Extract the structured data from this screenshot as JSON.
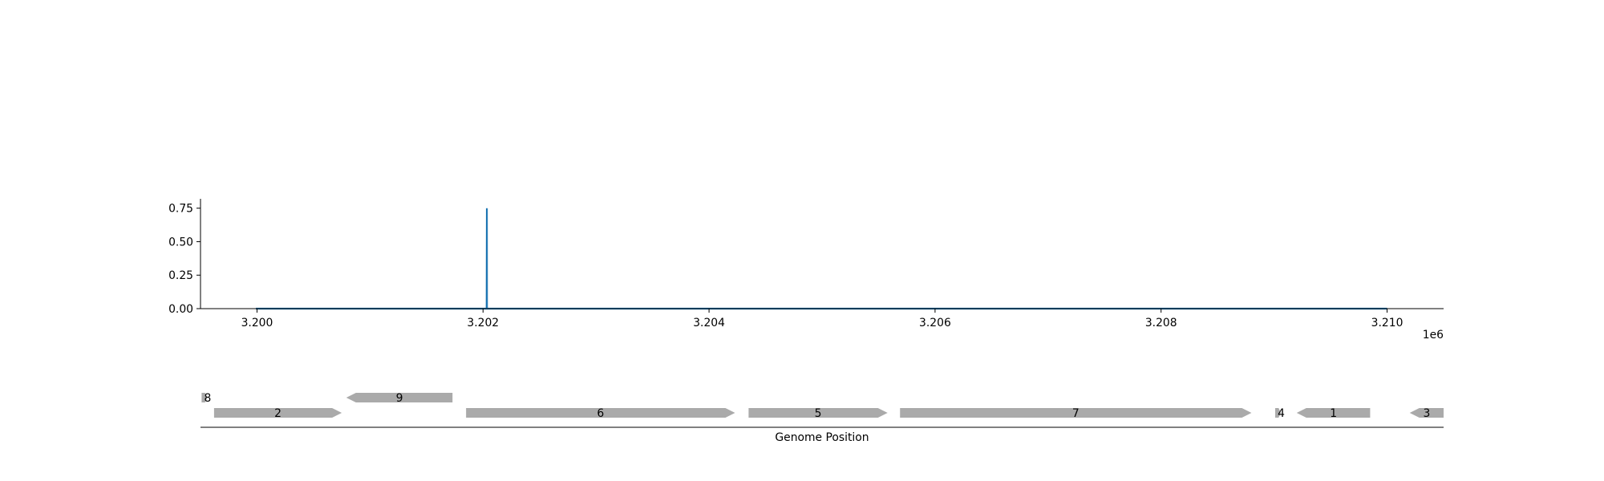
{
  "chart_data": [
    {
      "type": "line",
      "x": [
        3199990,
        3202030,
        3202031,
        3202032,
        3202034,
        3202035,
        3202036,
        3202040,
        3202045,
        3210000
      ],
      "y": [
        0.0,
        0.0,
        0.0,
        0.0,
        0.75,
        0.0,
        0.0,
        0.0,
        0.0,
        0.0
      ],
      "color": "#1f77b4",
      "xlim": [
        3199500,
        3210500
      ],
      "ylim": [
        0.0,
        0.82
      ],
      "xticks": [
        3200000,
        3202000,
        3204000,
        3206000,
        3208000,
        3210000
      ],
      "xtick_labels": [
        "3.200",
        "3.202",
        "3.204",
        "3.206",
        "3.208",
        "3.210"
      ],
      "yticks": [
        0.0,
        0.25,
        0.5,
        0.75
      ],
      "ytick_labels": [
        "0.00",
        "0.25",
        "0.50",
        "0.75"
      ],
      "offset_text": "1e6",
      "grid": false
    },
    {
      "type": "gene-track",
      "xlabel": "Genome Position",
      "color": "#aaaaaa",
      "xlim": [
        3199500,
        3210500
      ],
      "genes": [
        {
          "label": "8",
          "start": 3199510,
          "end": 3199560,
          "strand": 1,
          "row": 1
        },
        {
          "label": "9",
          "start": 3200790,
          "end": 3201730,
          "strand": -1,
          "row": 1
        },
        {
          "label": "2",
          "start": 3199620,
          "end": 3200750,
          "strand": 1,
          "row": 0
        },
        {
          "label": "6",
          "start": 3201850,
          "end": 3204230,
          "strand": 1,
          "row": 0
        },
        {
          "label": "5",
          "start": 3204350,
          "end": 3205580,
          "strand": 1,
          "row": 0
        },
        {
          "label": "7",
          "start": 3205690,
          "end": 3208800,
          "strand": 1,
          "row": 0
        },
        {
          "label": "4",
          "start": 3209010,
          "end": 3209060,
          "strand": 1,
          "row": 0
        },
        {
          "label": "1",
          "start": 3209200,
          "end": 3209850,
          "strand": -1,
          "row": 0
        },
        {
          "label": "3",
          "start": 3210200,
          "end": 3210500,
          "strand": -1,
          "row": 0
        }
      ]
    }
  ]
}
